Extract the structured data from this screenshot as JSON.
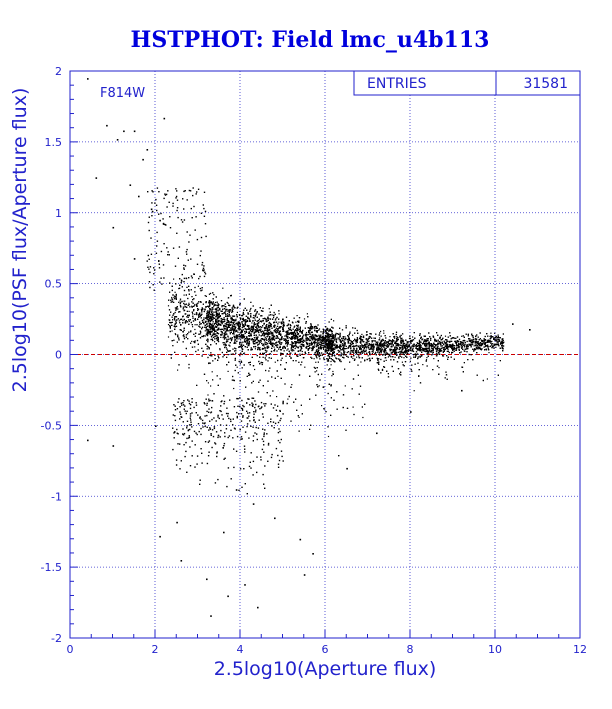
{
  "colors": {
    "title": "#0000dd",
    "axis": "#2222cc",
    "grid": "#3333cc",
    "points": "#000000",
    "zero_line": "#cc0000",
    "background": "#ffffff"
  },
  "chart_data": {
    "type": "scatter",
    "title": "HSTPHOT: Field lmc_u4b113",
    "xlabel": "2.5log10(Aperture flux)",
    "ylabel": "2.5log10(PSF flux/Aperture flux)",
    "xlim": [
      0,
      12
    ],
    "ylim": [
      -2,
      2
    ],
    "x_ticks": [
      0,
      2,
      4,
      6,
      8,
      10,
      12
    ],
    "y_ticks": [
      -2,
      -1.5,
      -1,
      -0.5,
      0,
      0.5,
      1,
      1.5,
      2
    ],
    "x_tick_labels": [
      "0",
      "2",
      "4",
      "6",
      "8",
      "10",
      "12"
    ],
    "y_tick_labels": [
      "-2",
      "-1.5",
      "-1",
      "-0.5",
      "0",
      "0.5",
      "1",
      "1.5",
      "2"
    ],
    "grid": true,
    "reference_line_y": 0,
    "annotation": "F814W",
    "stats": {
      "label": "ENTRIES",
      "value": "31581"
    },
    "density_ridge": [
      {
        "x": 3.0,
        "y_center": 0.28,
        "y_spread": 0.3
      },
      {
        "x": 4.0,
        "y_center": 0.18,
        "y_spread": 0.26
      },
      {
        "x": 5.0,
        "y_center": 0.13,
        "y_spread": 0.22
      },
      {
        "x": 6.0,
        "y_center": 0.09,
        "y_spread": 0.18
      },
      {
        "x": 7.0,
        "y_center": 0.07,
        "y_spread": 0.15
      },
      {
        "x": 8.0,
        "y_center": 0.06,
        "y_spread": 0.12
      },
      {
        "x": 9.0,
        "y_center": 0.07,
        "y_spread": 0.1
      },
      {
        "x": 10.0,
        "y_center": 0.1,
        "y_spread": 0.08
      }
    ],
    "sparse_points": [
      {
        "x": 0.4,
        "y": 1.95
      },
      {
        "x": 0.85,
        "y": 1.62
      },
      {
        "x": 1.1,
        "y": 1.52
      },
      {
        "x": 1.25,
        "y": 1.58
      },
      {
        "x": 1.5,
        "y": 1.58
      },
      {
        "x": 1.7,
        "y": 1.38
      },
      {
        "x": 1.8,
        "y": 1.45
      },
      {
        "x": 1.4,
        "y": 1.2
      },
      {
        "x": 1.6,
        "y": 1.12
      },
      {
        "x": 1.9,
        "y": 1.03
      },
      {
        "x": 2.1,
        "y": 0.95
      },
      {
        "x": 2.2,
        "y": 1.67
      },
      {
        "x": 1.0,
        "y": 0.9
      },
      {
        "x": 0.6,
        "y": 1.25
      },
      {
        "x": 1.5,
        "y": 0.68
      },
      {
        "x": 2.0,
        "y": -0.5
      },
      {
        "x": 1.0,
        "y": -0.64
      },
      {
        "x": 0.4,
        "y": -0.6
      },
      {
        "x": 2.5,
        "y": -1.18
      },
      {
        "x": 2.6,
        "y": -1.45
      },
      {
        "x": 2.1,
        "y": -1.28
      },
      {
        "x": 3.2,
        "y": -1.58
      },
      {
        "x": 3.3,
        "y": -1.84
      },
      {
        "x": 3.7,
        "y": -1.7
      },
      {
        "x": 4.1,
        "y": -1.62
      },
      {
        "x": 4.4,
        "y": -1.78
      },
      {
        "x": 5.5,
        "y": -1.55
      },
      {
        "x": 5.7,
        "y": -1.4
      },
      {
        "x": 4.3,
        "y": -1.05
      },
      {
        "x": 4.8,
        "y": -1.15
      },
      {
        "x": 5.4,
        "y": -1.3
      },
      {
        "x": 6.5,
        "y": -0.8
      },
      {
        "x": 7.2,
        "y": -0.55
      },
      {
        "x": 8.0,
        "y": -0.4
      },
      {
        "x": 9.2,
        "y": -0.25
      },
      {
        "x": 10.8,
        "y": 0.18
      },
      {
        "x": 10.4,
        "y": 0.22
      },
      {
        "x": 3.9,
        "y": -0.95
      },
      {
        "x": 3.6,
        "y": -1.25
      }
    ]
  }
}
